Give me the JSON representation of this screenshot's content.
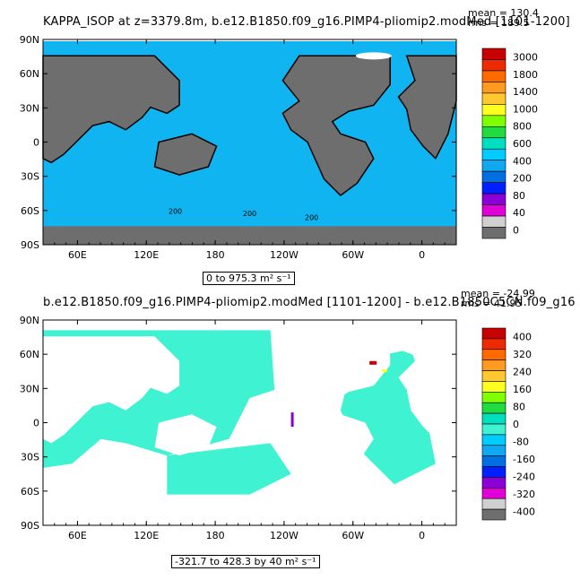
{
  "panel1": {
    "title": "KAPPA_ISOP at z=3379.8m, b.e12.B1850.f09_g16.PIMP4-pliomip2.modMed [1101-1200]",
    "mean_label": "mean = 130.4",
    "rms_label": "rms = 189.5",
    "range_label": "0 to 975.3 m² s⁻¹",
    "colorbar_labels": [
      "3000",
      "1800",
      "1400",
      "1000",
      "800",
      "600",
      "400",
      "200",
      "80",
      "40",
      "0"
    ]
  },
  "panel2": {
    "title": "b.e12.B1850.f09_g16.PIMP4-pliomip2.modMed [1101-1200] - b.e12.B1850C5CN.f09_g16",
    "mean_label": "mean = -24.99",
    "rms_label": "rms = 41.95",
    "range_label": "-321.7 to 428.3 by 40 m² s⁻¹",
    "colorbar_labels": [
      "400",
      "320",
      "240",
      "160",
      "80",
      "0",
      "-80",
      "-160",
      "-240",
      "-320",
      "-400"
    ]
  },
  "axes": {
    "lat_ticks": [
      "90N",
      "60N",
      "30N",
      "0",
      "30S",
      "60S",
      "90S"
    ],
    "lon_ticks": [
      "60E",
      "120E",
      "180",
      "120W",
      "60W",
      "0"
    ]
  },
  "chart_data": [
    {
      "type": "heatmap",
      "title": "KAPPA_ISOP at z=3379.8m, b.e12.B1850.f09_g16.PIMP4-pliomip2.modMed [1101-1200]",
      "xlabel": "",
      "ylabel": "",
      "x_ticks": [
        "60E",
        "120E",
        "180",
        "120W",
        "60W",
        "0"
      ],
      "y_ticks": [
        "90N",
        "60N",
        "30N",
        "0",
        "30S",
        "60S",
        "90S"
      ],
      "colorbar_levels": [
        3000,
        1800,
        1400,
        1000,
        800,
        600,
        400,
        200,
        80,
        40,
        0
      ],
      "stats": {
        "mean": 130.4,
        "rms": 189.5
      },
      "range": {
        "min": 0,
        "max": 975.3,
        "units": "m² s⁻¹"
      },
      "contour_labels": [
        200
      ],
      "dominant_value_range": [
        200,
        400
      ]
    },
    {
      "type": "heatmap",
      "title": "b.e12.B1850.f09_g16.PIMP4-pliomip2.modMed [1101-1200] - b.e12.B1850C5CN.f09_g16",
      "xlabel": "",
      "ylabel": "",
      "x_ticks": [
        "60E",
        "120E",
        "180",
        "120W",
        "60W",
        "0"
      ],
      "y_ticks": [
        "90N",
        "60N",
        "30N",
        "0",
        "30S",
        "60S",
        "90S"
      ],
      "colorbar_levels": [
        400,
        320,
        240,
        160,
        80,
        0,
        -80,
        -160,
        -240,
        -320,
        -400
      ],
      "stats": {
        "mean": -24.99,
        "rms": 41.95
      },
      "range": {
        "min": -321.7,
        "max": 428.3,
        "interval": 40,
        "units": "m² s⁻¹"
      },
      "dominant_value_range": [
        -80,
        0
      ]
    }
  ],
  "colors": {
    "land": "#6e6e6e",
    "ocean_cyan": "#10b4f0",
    "diff_cyan": "#3ff2d2",
    "colorbar1": [
      "#c80000",
      "#ee2a00",
      "#ff6a00",
      "#ff9a20",
      "#ffc830",
      "#ffff20",
      "#80ff00",
      "#20dc40",
      "#00e0c0",
      "#00ccff",
      "#10a8f0",
      "#0070e0",
      "#0020ff",
      "#8c00d8",
      "#e000d8",
      "#d0d0d0",
      "#6e6e6e"
    ],
    "colorbar2": [
      "#c80000",
      "#ee2a00",
      "#ff6a00",
      "#ff9a20",
      "#ffc830",
      "#ffff20",
      "#80ff00",
      "#20dc40",
      "#00e0c0",
      "#3ff2d2",
      "#00ccff",
      "#10a8f0",
      "#0070e0",
      "#0020ff",
      "#8c00d8",
      "#e000d8",
      "#d0d0d0",
      "#6e6e6e"
    ]
  }
}
